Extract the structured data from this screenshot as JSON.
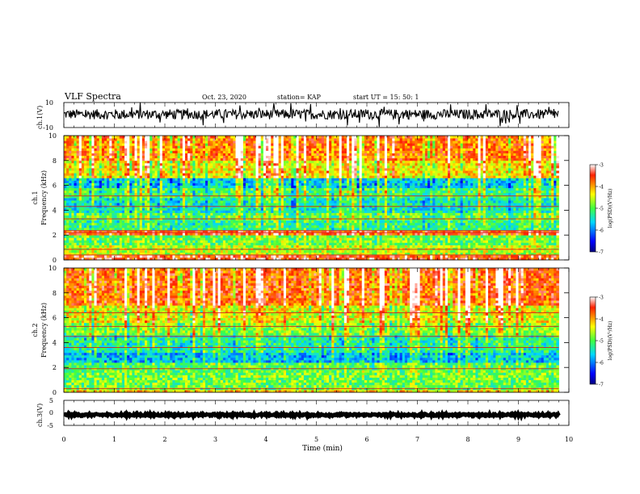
{
  "header": {
    "title": "VLF Spectra",
    "date": "Oct. 23, 2020",
    "station": "station= KAP",
    "start": "start  UT =   15: 50: 1"
  },
  "chart_data": [
    {
      "type": "line",
      "name": "ch1-waveform",
      "ylabel": "ch.1(V)",
      "ylim": [
        -10,
        10
      ],
      "yticks": [
        10,
        -10
      ],
      "xlim": [
        0,
        10
      ],
      "x_extent": [
        0,
        9.8
      ],
      "trace_level": 0.6,
      "trace_amplitude": 4
    },
    {
      "type": "heatmap",
      "name": "ch1-spectrogram",
      "ylabel_top": "ch.1",
      "ylabel": "Frequency (kHz)",
      "ylim": [
        0,
        10
      ],
      "yticks": [
        0,
        2,
        4,
        6,
        8,
        10
      ],
      "xlim": [
        0,
        10
      ],
      "x_extent": [
        0,
        9.8
      ],
      "colorbar": {
        "label": "log(PSD)(V²/Hz)",
        "range": [
          -7,
          -3
        ],
        "ticks": [
          -3,
          -4,
          -5,
          -6,
          -7
        ]
      },
      "bands": [
        {
          "from": 0.0,
          "to": 0.4,
          "value": -3.5
        },
        {
          "from": 0.4,
          "to": 1.2,
          "value": -4.6
        },
        {
          "from": 1.2,
          "to": 2.0,
          "value": -4.9
        },
        {
          "from": 2.0,
          "to": 2.4,
          "value": -3.6
        },
        {
          "from": 2.4,
          "to": 3.2,
          "value": -5.2
        },
        {
          "from": 3.2,
          "to": 3.8,
          "value": -5.0
        },
        {
          "from": 3.8,
          "to": 5.0,
          "value": -5.4
        },
        {
          "from": 5.0,
          "to": 5.8,
          "value": -5.1
        },
        {
          "from": 5.8,
          "to": 6.6,
          "value": -5.6
        },
        {
          "from": 6.6,
          "to": 8.0,
          "value": -4.3
        },
        {
          "from": 8.0,
          "to": 10.0,
          "value": -3.8
        }
      ],
      "lines_khz": [
        0.4,
        0.85,
        2.2,
        2.35,
        3.3,
        4.3,
        5.15
      ]
    },
    {
      "type": "heatmap",
      "name": "ch2-spectrogram",
      "ylabel_top": "ch.2",
      "ylabel": "Frequency (kHz)",
      "ylim": [
        0,
        10
      ],
      "yticks": [
        0,
        2,
        4,
        6,
        8,
        10
      ],
      "xlim": [
        0,
        10
      ],
      "x_extent": [
        0,
        9.8
      ],
      "colorbar": {
        "label": "log(PSD)(V²/Hz)",
        "range": [
          -7,
          -3
        ],
        "ticks": [
          -3,
          -4,
          -5,
          -6,
          -7
        ]
      },
      "bands": [
        {
          "from": 0.0,
          "to": 0.3,
          "value": -4.2
        },
        {
          "from": 0.3,
          "to": 1.8,
          "value": -4.9
        },
        {
          "from": 1.8,
          "to": 2.4,
          "value": -5.0
        },
        {
          "from": 2.4,
          "to": 3.2,
          "value": -5.7
        },
        {
          "from": 3.2,
          "to": 4.6,
          "value": -5.3
        },
        {
          "from": 4.6,
          "to": 5.6,
          "value": -4.8
        },
        {
          "from": 5.6,
          "to": 7.0,
          "value": -4.4
        },
        {
          "from": 7.0,
          "to": 10.0,
          "value": -3.7
        }
      ],
      "lines_khz": [
        0.3,
        1.9,
        3.6,
        4.5,
        5.3,
        6.4
      ]
    },
    {
      "type": "line",
      "name": "ch3-waveform",
      "ylabel": "ch.3(V)",
      "ylim": [
        -5,
        5
      ],
      "yticks": [
        5,
        0,
        -5
      ],
      "xlim": [
        0,
        10
      ],
      "x_extent": [
        0,
        9.8
      ],
      "trace_level": -0.8,
      "trace_amplitude": 0.4
    }
  ],
  "x_axis": {
    "label": "Time  (min)",
    "ticks": [
      0,
      1,
      2,
      3,
      4,
      5,
      6,
      7,
      8,
      9,
      10
    ]
  }
}
